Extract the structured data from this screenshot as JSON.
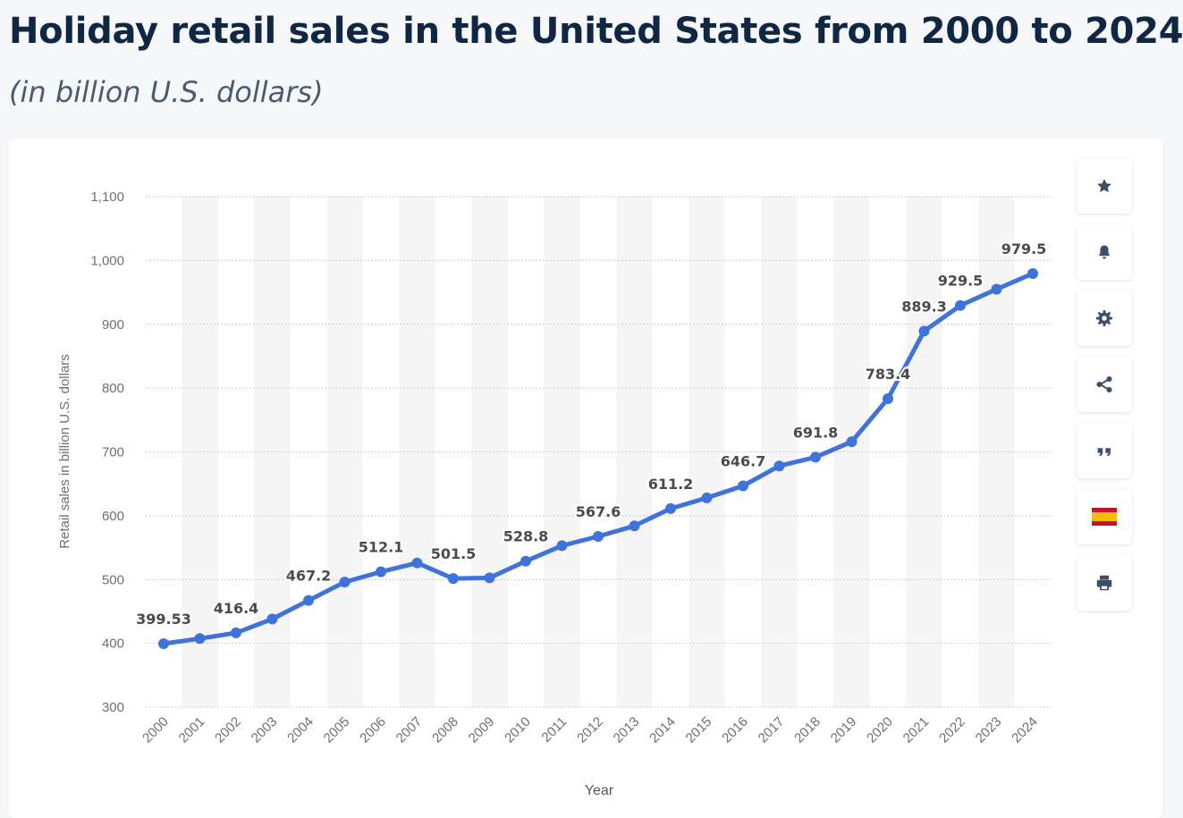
{
  "header": {
    "title": "Holiday retail sales in the United States from 2000 to 2024",
    "subtitle": "(in billion U.S. dollars)"
  },
  "toolbar": [
    {
      "name": "favorite-button",
      "icon": "star-icon"
    },
    {
      "name": "notification-button",
      "icon": "bell-icon"
    },
    {
      "name": "settings-button",
      "icon": "gear-icon"
    },
    {
      "name": "share-button",
      "icon": "share-icon"
    },
    {
      "name": "cite-button",
      "icon": "quote-icon"
    },
    {
      "name": "language-button",
      "icon": "spain-flag-icon"
    },
    {
      "name": "print-button",
      "icon": "printer-icon"
    }
  ],
  "colors": {
    "line": "#3f72db",
    "title": "#0f2742",
    "grid": "#c8ccd2",
    "band": "#f5f5f5",
    "label": "#4a4a4a",
    "axis_text": "#6b6f76",
    "icon": "#3c4f68"
  },
  "chart_data": {
    "type": "line",
    "title": "Holiday retail sales in the United States from 2000 to 2024",
    "xlabel": "Year",
    "ylabel": "Retail sales in billion U.S. dollars",
    "ylim": [
      300,
      1100
    ],
    "yticks": [
      300,
      400,
      500,
      600,
      700,
      800,
      900,
      1000,
      1100
    ],
    "ytick_labels": [
      "300",
      "400",
      "500",
      "600",
      "700",
      "800",
      "900",
      "1,000",
      "1,100"
    ],
    "grid": true,
    "categories": [
      "2000",
      "2001",
      "2002",
      "2003",
      "2004",
      "2005",
      "2006",
      "2007",
      "2008",
      "2009",
      "2010",
      "2011",
      "2012",
      "2013",
      "2014",
      "2015",
      "2016",
      "2017",
      "2018",
      "2019",
      "2020",
      "2021",
      "2022",
      "2023",
      "2024"
    ],
    "series": [
      {
        "name": "Holiday retail sales",
        "values": [
          399.53,
          407.5,
          416.4,
          438.2,
          467.2,
          496.0,
          512.1,
          526.0,
          501.5,
          502.6,
          528.8,
          553.0,
          567.6,
          584.0,
          611.2,
          628.0,
          646.7,
          678.0,
          691.8,
          716.0,
          783.4,
          889.3,
          929.5,
          955.0,
          979.5
        ],
        "data_labels": [
          {
            "index": 0,
            "text": "399.53"
          },
          {
            "index": 2,
            "text": "416.4"
          },
          {
            "index": 4,
            "text": "467.2"
          },
          {
            "index": 6,
            "text": "512.1"
          },
          {
            "index": 8,
            "text": "501.5"
          },
          {
            "index": 10,
            "text": "528.8"
          },
          {
            "index": 12,
            "text": "567.6"
          },
          {
            "index": 14,
            "text": "611.2"
          },
          {
            "index": 16,
            "text": "646.7"
          },
          {
            "index": 18,
            "text": "691.8"
          },
          {
            "index": 20,
            "text": "783.4"
          },
          {
            "index": 21,
            "text": "889.3"
          },
          {
            "index": 22,
            "text": "929.5"
          },
          {
            "index": 24,
            "text": "979.5"
          }
        ]
      }
    ]
  }
}
